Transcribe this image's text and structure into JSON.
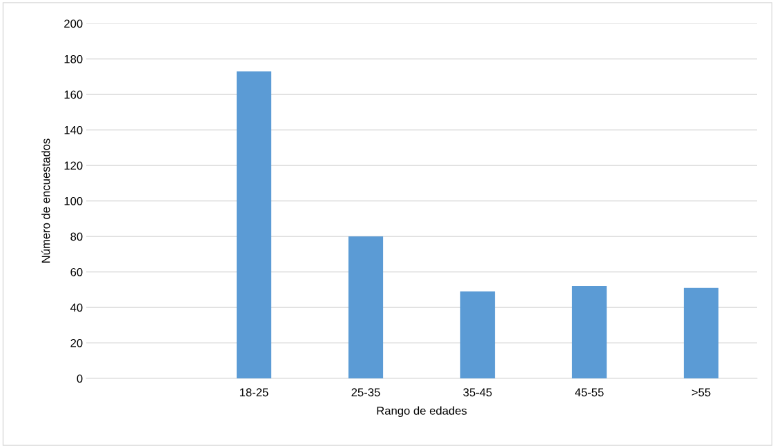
{
  "chart_data": {
    "type": "bar",
    "xlabel": "Rango de edades",
    "ylabel": "Número de encuestados",
    "categories": [
      null,
      "18-25",
      "25-35",
      "35-45",
      "45-55",
      ">55"
    ],
    "values": [
      null,
      173,
      80,
      49,
      52,
      51
    ],
    "color": "#5b9bd5",
    "ylim": [
      0,
      200
    ],
    "yticks": [
      0,
      20,
      40,
      60,
      80,
      100,
      120,
      140,
      160,
      180,
      200
    ],
    "grid": "y"
  }
}
